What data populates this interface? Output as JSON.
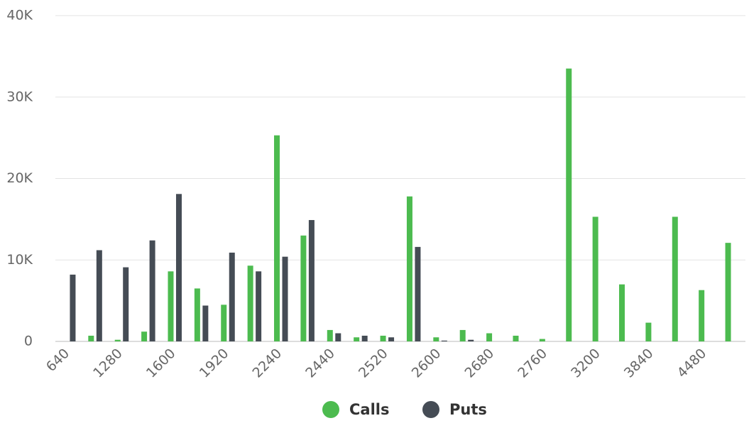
{
  "chart_data": {
    "type": "bar",
    "categories": [
      "640",
      null,
      "1280",
      null,
      "1600",
      null,
      "1920",
      null,
      "2240",
      null,
      "2440",
      null,
      "2520",
      null,
      "2600",
      null,
      "2680",
      null,
      "2760",
      null,
      "3200",
      null,
      "3840",
      null,
      "4480",
      null
    ],
    "series": [
      {
        "name": "Calls",
        "color": "#4cbb4f",
        "values": [
          0,
          700,
          200,
          1200,
          8600,
          6500,
          4500,
          9300,
          25300,
          13000,
          1400,
          500,
          700,
          17800,
          500,
          1400,
          1000,
          700,
          300,
          33500,
          15300,
          7000,
          2300,
          15300,
          6300,
          12100
        ]
      },
      {
        "name": "Puts",
        "color": "#454c55",
        "values": [
          8200,
          11200,
          9100,
          12400,
          18100,
          4400,
          10900,
          8600,
          10400,
          14900,
          1000,
          700,
          500,
          11600,
          100,
          200,
          0,
          0,
          0,
          0,
          0,
          0,
          0,
          0,
          0,
          0
        ]
      }
    ],
    "ylim": [
      0,
      40000
    ],
    "yticks": [
      0,
      {
        "value": 10000,
        "label": "10K"
      },
      {
        "value": 20000,
        "label": "20K"
      },
      {
        "value": 30000,
        "label": "30K"
      },
      {
        "value": 40000,
        "label": "40K"
      }
    ],
    "grid": true
  }
}
